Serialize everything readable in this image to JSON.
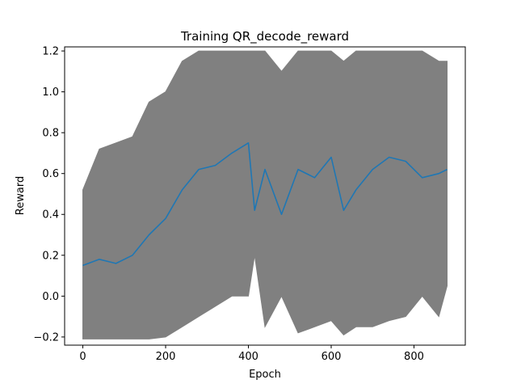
{
  "chart_data": {
    "type": "line",
    "title": "Training QR_decode_reward",
    "xlabel": "Epoch",
    "ylabel": "Reward",
    "xlim": [
      -44,
      924
    ],
    "ylim": [
      -0.24,
      1.22
    ],
    "xticks": [
      0,
      200,
      400,
      600,
      800
    ],
    "xtick_labels": [
      "0",
      "200",
      "400",
      "600",
      "800"
    ],
    "yticks": [
      -0.2,
      0.0,
      0.2,
      0.4,
      0.6,
      0.8,
      1.0,
      1.2
    ],
    "ytick_labels": [
      "−0.2",
      "0.0",
      "0.2",
      "0.4",
      "0.6",
      "0.8",
      "1.0",
      "1.2"
    ],
    "grid": false,
    "x": [
      0,
      40,
      80,
      120,
      160,
      200,
      240,
      280,
      320,
      360,
      400,
      415,
      440,
      480,
      520,
      560,
      600,
      630,
      660,
      700,
      740,
      780,
      820,
      860,
      880
    ],
    "series": [
      {
        "style": "band",
        "color": "#808080",
        "upper": [
          0.52,
          0.72,
          0.75,
          0.78,
          0.95,
          1.0,
          1.15,
          1.2,
          1.2,
          1.2,
          1.2,
          1.2,
          1.2,
          1.1,
          1.2,
          1.2,
          1.2,
          1.15,
          1.2,
          1.2,
          1.2,
          1.2,
          1.2,
          1.15,
          1.15
        ],
        "lower": [
          -0.21,
          -0.21,
          -0.21,
          -0.21,
          -0.21,
          -0.2,
          -0.15,
          -0.1,
          -0.05,
          0.0,
          0.0,
          0.2,
          -0.15,
          0.0,
          -0.18,
          -0.15,
          -0.12,
          -0.19,
          -0.15,
          -0.15,
          -0.12,
          -0.1,
          0.0,
          -0.1,
          0.05
        ]
      },
      {
        "style": "line",
        "color": "#1f77b4",
        "values": [
          0.15,
          0.18,
          0.16,
          0.2,
          0.3,
          0.38,
          0.52,
          0.62,
          0.64,
          0.7,
          0.75,
          0.42,
          0.62,
          0.4,
          0.62,
          0.58,
          0.68,
          0.42,
          0.52,
          0.62,
          0.68,
          0.66,
          0.58,
          0.6,
          0.62
        ]
      }
    ]
  }
}
